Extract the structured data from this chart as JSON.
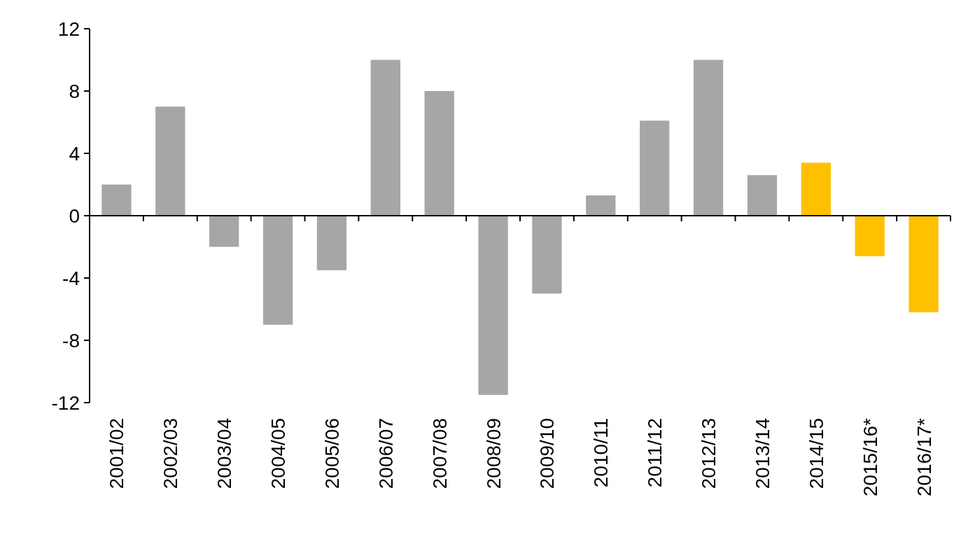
{
  "chart_data": {
    "type": "bar",
    "categories": [
      "2001/02",
      "2002/03",
      "2003/04",
      "2004/05",
      "2005/06",
      "2006/07",
      "2007/08",
      "2008/09",
      "2009/10",
      "2010/11",
      "2011/12",
      "2012/13",
      "2013/14",
      "2014/15",
      "2015/16*",
      "2016/17*"
    ],
    "values": [
      2,
      7,
      -2,
      -7,
      -3.5,
      10,
      8,
      -11.5,
      -5,
      1.3,
      6.1,
      10,
      2.6,
      3.4,
      -2.6,
      -6.2
    ],
    "colors": [
      "#a6a6a6",
      "#a6a6a6",
      "#a6a6a6",
      "#a6a6a6",
      "#a6a6a6",
      "#a6a6a6",
      "#a6a6a6",
      "#a6a6a6",
      "#a6a6a6",
      "#a6a6a6",
      "#a6a6a6",
      "#a6a6a6",
      "#a6a6a6",
      "#ffc000",
      "#ffc000",
      "#ffc000"
    ],
    "ylim": [
      -12,
      12
    ],
    "yticks": [
      -12,
      -8,
      -4,
      0,
      4,
      8,
      12
    ]
  }
}
